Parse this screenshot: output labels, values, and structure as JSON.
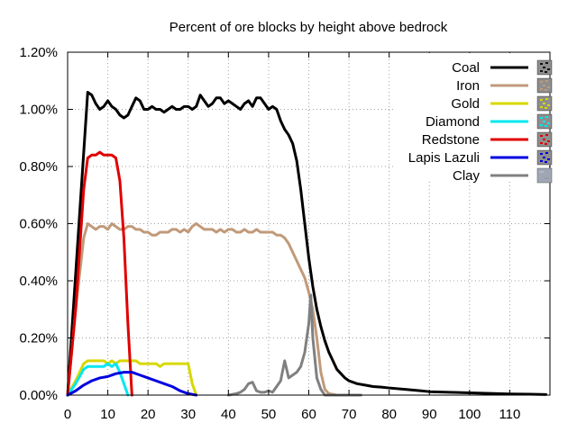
{
  "chart_data": {
    "type": "line",
    "title": "Percent of ore blocks by height above bedrock",
    "xlabel": "",
    "ylabel": "",
    "xlim": [
      0,
      120
    ],
    "ylim": [
      0,
      1.2
    ],
    "x_ticks": [
      0,
      10,
      20,
      30,
      40,
      50,
      60,
      70,
      80,
      90,
      100,
      110
    ],
    "x_tick_labels": [
      "0",
      "10",
      "20",
      "30",
      "40",
      "50",
      "60",
      "70",
      "80",
      "90",
      "100",
      "110"
    ],
    "y_ticks": [
      0,
      0.2,
      0.4,
      0.6,
      0.8,
      1.0,
      1.2
    ],
    "y_tick_labels": [
      "0.00%",
      "0.20%",
      "0.40%",
      "0.60%",
      "0.80%",
      "1.00%",
      "1.20%"
    ],
    "grid": true,
    "legend_position": "top-right",
    "series": [
      {
        "name": "Coal",
        "color": "#000000",
        "swatch_icon": "coal-ore-icon",
        "points": [
          [
            0,
            0
          ],
          [
            5,
            1.06
          ],
          [
            6,
            1.05
          ],
          [
            7,
            1.02
          ],
          [
            8,
            1.0
          ],
          [
            9,
            1.01
          ],
          [
            10,
            1.03
          ],
          [
            11,
            1.01
          ],
          [
            12,
            1.0
          ],
          [
            13,
            0.98
          ],
          [
            14,
            0.97
          ],
          [
            15,
            0.98
          ],
          [
            16,
            1.01
          ],
          [
            17,
            1.04
          ],
          [
            18,
            1.03
          ],
          [
            19,
            1.0
          ],
          [
            20,
            1.0
          ],
          [
            21,
            1.01
          ],
          [
            22,
            1.0
          ],
          [
            23,
            1.0
          ],
          [
            24,
            0.99
          ],
          [
            25,
            1.0
          ],
          [
            26,
            1.01
          ],
          [
            27,
            1.0
          ],
          [
            28,
            1.0
          ],
          [
            29,
            1.01
          ],
          [
            30,
            1.01
          ],
          [
            31,
            1.0
          ],
          [
            32,
            1.01
          ],
          [
            33,
            1.05
          ],
          [
            34,
            1.03
          ],
          [
            35,
            1.01
          ],
          [
            36,
            1.02
          ],
          [
            37,
            1.04
          ],
          [
            38,
            1.04
          ],
          [
            39,
            1.02
          ],
          [
            40,
            1.03
          ],
          [
            41,
            1.02
          ],
          [
            42,
            1.01
          ],
          [
            43,
            1.0
          ],
          [
            44,
            1.02
          ],
          [
            45,
            1.03
          ],
          [
            46,
            1.01
          ],
          [
            47,
            1.04
          ],
          [
            48,
            1.04
          ],
          [
            49,
            1.02
          ],
          [
            50,
            1.0
          ],
          [
            51,
            1.01
          ],
          [
            52,
            1.0
          ],
          [
            53,
            0.96
          ],
          [
            54,
            0.93
          ],
          [
            55,
            0.91
          ],
          [
            56,
            0.88
          ],
          [
            57,
            0.82
          ],
          [
            58,
            0.72
          ],
          [
            59,
            0.6
          ],
          [
            60,
            0.48
          ],
          [
            61,
            0.38
          ],
          [
            62,
            0.3
          ],
          [
            63,
            0.24
          ],
          [
            64,
            0.19
          ],
          [
            65,
            0.15
          ],
          [
            66,
            0.12
          ],
          [
            67,
            0.09
          ],
          [
            68,
            0.075
          ],
          [
            69,
            0.06
          ],
          [
            70,
            0.05
          ],
          [
            72,
            0.04
          ],
          [
            74,
            0.035
          ],
          [
            76,
            0.03
          ],
          [
            78,
            0.028
          ],
          [
            80,
            0.025
          ],
          [
            84,
            0.02
          ],
          [
            88,
            0.015
          ],
          [
            90,
            0.012
          ],
          [
            95,
            0.01
          ],
          [
            100,
            0.008
          ],
          [
            105,
            0.006
          ],
          [
            110,
            0.004
          ],
          [
            115,
            0.003
          ],
          [
            119,
            0.002
          ]
        ]
      },
      {
        "name": "Iron",
        "color": "#c09a7a",
        "swatch_icon": "iron-ore-icon",
        "points": [
          [
            0,
            0
          ],
          [
            2,
            0.3
          ],
          [
            4,
            0.55
          ],
          [
            5,
            0.6
          ],
          [
            6,
            0.59
          ],
          [
            7,
            0.58
          ],
          [
            8,
            0.59
          ],
          [
            9,
            0.59
          ],
          [
            10,
            0.58
          ],
          [
            11,
            0.6
          ],
          [
            12,
            0.59
          ],
          [
            13,
            0.58
          ],
          [
            14,
            0.58
          ],
          [
            15,
            0.59
          ],
          [
            16,
            0.59
          ],
          [
            17,
            0.58
          ],
          [
            18,
            0.58
          ],
          [
            19,
            0.57
          ],
          [
            20,
            0.57
          ],
          [
            21,
            0.56
          ],
          [
            22,
            0.56
          ],
          [
            23,
            0.57
          ],
          [
            24,
            0.57
          ],
          [
            25,
            0.57
          ],
          [
            26,
            0.58
          ],
          [
            27,
            0.58
          ],
          [
            28,
            0.57
          ],
          [
            29,
            0.58
          ],
          [
            30,
            0.57
          ],
          [
            31,
            0.59
          ],
          [
            32,
            0.6
          ],
          [
            33,
            0.59
          ],
          [
            34,
            0.58
          ],
          [
            35,
            0.58
          ],
          [
            36,
            0.58
          ],
          [
            37,
            0.57
          ],
          [
            38,
            0.58
          ],
          [
            39,
            0.57
          ],
          [
            40,
            0.58
          ],
          [
            41,
            0.58
          ],
          [
            42,
            0.57
          ],
          [
            43,
            0.57
          ],
          [
            44,
            0.58
          ],
          [
            45,
            0.57
          ],
          [
            46,
            0.57
          ],
          [
            47,
            0.58
          ],
          [
            48,
            0.57
          ],
          [
            49,
            0.57
          ],
          [
            50,
            0.57
          ],
          [
            51,
            0.57
          ],
          [
            52,
            0.56
          ],
          [
            53,
            0.56
          ],
          [
            54,
            0.55
          ],
          [
            55,
            0.53
          ],
          [
            56,
            0.5
          ],
          [
            57,
            0.47
          ],
          [
            58,
            0.44
          ],
          [
            59,
            0.41
          ],
          [
            60,
            0.36
          ],
          [
            61,
            0.3
          ],
          [
            62,
            0.2
          ],
          [
            63,
            0.08
          ],
          [
            64,
            0.02
          ],
          [
            65,
            0.005
          ],
          [
            67,
            0
          ]
        ]
      },
      {
        "name": "Gold",
        "color": "#d8d800",
        "swatch_icon": "gold-ore-icon",
        "points": [
          [
            0,
            0
          ],
          [
            2,
            0.05
          ],
          [
            4,
            0.11
          ],
          [
            5,
            0.12
          ],
          [
            6,
            0.12
          ],
          [
            7,
            0.12
          ],
          [
            8,
            0.12
          ],
          [
            9,
            0.12
          ],
          [
            10,
            0.11
          ],
          [
            11,
            0.12
          ],
          [
            12,
            0.11
          ],
          [
            13,
            0.12
          ],
          [
            14,
            0.12
          ],
          [
            15,
            0.12
          ],
          [
            16,
            0.12
          ],
          [
            17,
            0.12
          ],
          [
            18,
            0.11
          ],
          [
            19,
            0.11
          ],
          [
            20,
            0.11
          ],
          [
            21,
            0.11
          ],
          [
            22,
            0.11
          ],
          [
            23,
            0.1
          ],
          [
            24,
            0.11
          ],
          [
            25,
            0.11
          ],
          [
            26,
            0.11
          ],
          [
            27,
            0.11
          ],
          [
            28,
            0.11
          ],
          [
            29,
            0.11
          ],
          [
            30,
            0.11
          ],
          [
            31,
            0.04
          ],
          [
            32,
            0.0
          ]
        ]
      },
      {
        "name": "Diamond",
        "color": "#00e8f0",
        "swatch_icon": "diamond-ore-icon",
        "points": [
          [
            0,
            0
          ],
          [
            2,
            0.04
          ],
          [
            4,
            0.09
          ],
          [
            5,
            0.1
          ],
          [
            6,
            0.1
          ],
          [
            7,
            0.1
          ],
          [
            8,
            0.1
          ],
          [
            9,
            0.1
          ],
          [
            10,
            0.11
          ],
          [
            11,
            0.1
          ],
          [
            12,
            0.11
          ],
          [
            13,
            0.08
          ],
          [
            14,
            0.04
          ],
          [
            15,
            0.0
          ]
        ]
      },
      {
        "name": "Redstone",
        "color": "#e00000",
        "swatch_icon": "redstone-ore-icon",
        "points": [
          [
            0,
            0
          ],
          [
            2,
            0.3
          ],
          [
            4,
            0.72
          ],
          [
            5,
            0.83
          ],
          [
            6,
            0.84
          ],
          [
            7,
            0.84
          ],
          [
            8,
            0.85
          ],
          [
            9,
            0.84
          ],
          [
            10,
            0.84
          ],
          [
            11,
            0.84
          ],
          [
            12,
            0.83
          ],
          [
            13,
            0.75
          ],
          [
            14,
            0.55
          ],
          [
            15,
            0.25
          ],
          [
            16,
            0.0
          ]
        ]
      },
      {
        "name": "Lapis Lazuli",
        "color": "#0000e0",
        "swatch_icon": "lapis-lazuli-ore-icon",
        "points": [
          [
            0,
            0
          ],
          [
            2,
            0.015
          ],
          [
            4,
            0.035
          ],
          [
            6,
            0.05
          ],
          [
            8,
            0.06
          ],
          [
            10,
            0.065
          ],
          [
            12,
            0.075
          ],
          [
            14,
            0.08
          ],
          [
            16,
            0.08
          ],
          [
            18,
            0.07
          ],
          [
            20,
            0.06
          ],
          [
            22,
            0.05
          ],
          [
            24,
            0.04
          ],
          [
            26,
            0.03
          ],
          [
            28,
            0.015
          ],
          [
            30,
            0.005
          ],
          [
            32,
            0.0
          ]
        ]
      },
      {
        "name": "Clay",
        "color": "#808080",
        "swatch_icon": "clay-block-icon",
        "points": [
          [
            40,
            0
          ],
          [
            42,
            0.005
          ],
          [
            43,
            0.01
          ],
          [
            44,
            0.02
          ],
          [
            45,
            0.04
          ],
          [
            46,
            0.045
          ],
          [
            47,
            0.015
          ],
          [
            48,
            0.01
          ],
          [
            49,
            0.01
          ],
          [
            50,
            0.015
          ],
          [
            51,
            0.01
          ],
          [
            52,
            0.03
          ],
          [
            53,
            0.05
          ],
          [
            54,
            0.12
          ],
          [
            55,
            0.06
          ],
          [
            56,
            0.07
          ],
          [
            57,
            0.08
          ],
          [
            58,
            0.1
          ],
          [
            59,
            0.15
          ],
          [
            60,
            0.25
          ],
          [
            60.5,
            0.35
          ],
          [
            61,
            0.2
          ],
          [
            62,
            0.06
          ],
          [
            63,
            0.02
          ],
          [
            64,
            0.0
          ],
          [
            73,
            0.0
          ]
        ]
      }
    ]
  }
}
